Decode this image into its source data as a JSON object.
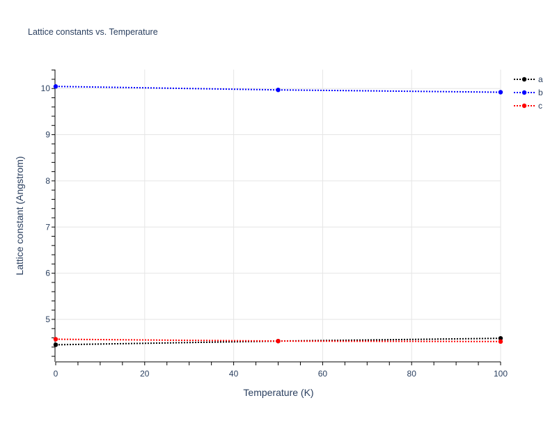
{
  "chart_data": {
    "type": "line",
    "title": "Lattice constants vs. Temperature",
    "xlabel": "Temperature (K)",
    "ylabel": "Lattice constant (Angstrom)",
    "xlim": [
      0,
      100
    ],
    "ylim": [
      4.08,
      10.41
    ],
    "xticks": [
      0,
      20,
      40,
      60,
      80,
      100
    ],
    "yticks": [
      5,
      6,
      7,
      8,
      9,
      10
    ],
    "x_minor_step": 5,
    "y_minor_step": 0.2,
    "grid": true,
    "legend_placement": "top-right",
    "line_style": "dotted",
    "x": [
      0,
      50,
      100
    ],
    "series": [
      {
        "name": "a",
        "color": "#000000",
        "values": [
          4.45,
          4.53,
          4.59
        ]
      },
      {
        "name": "b",
        "color": "#0000ff",
        "values": [
          10.045,
          9.97,
          9.92
        ]
      },
      {
        "name": "c",
        "color": "#ff0000",
        "values": [
          4.57,
          4.53,
          4.52
        ]
      }
    ]
  }
}
